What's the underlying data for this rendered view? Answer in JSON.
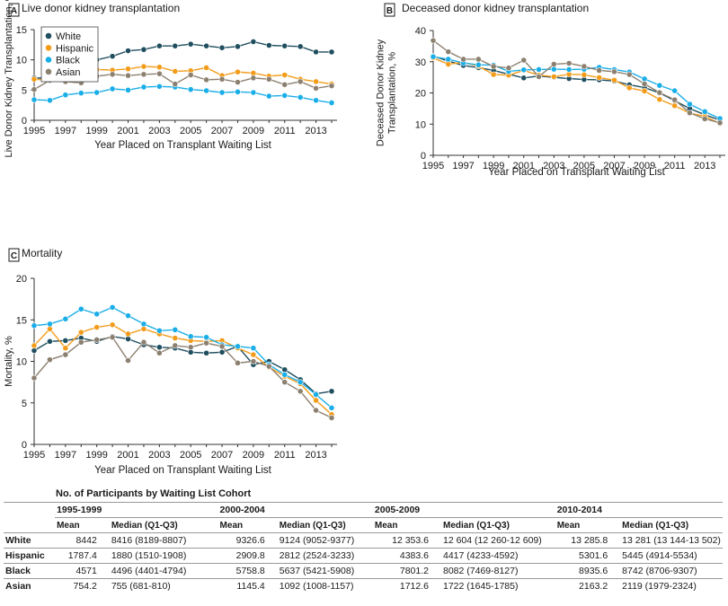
{
  "colors": {
    "White": "#1f4e5f",
    "Hispanic": "#f39c1a",
    "Black": "#1aaee8",
    "Asian": "#8c8070"
  },
  "chart_data": [
    {
      "panel": "A",
      "type": "line",
      "title": "Live donor kidney transplantation",
      "xlabel": "Year Placed on Transplant Waiting List",
      "ylabel": [
        "Live Donor Kidney Transplantation, %"
      ],
      "xlim": [
        1995,
        2014
      ],
      "ylim": [
        0,
        15
      ],
      "yticks": [
        0,
        5,
        10,
        15
      ],
      "xticks": [
        1995,
        1997,
        1999,
        2001,
        2003,
        2005,
        2007,
        2009,
        2011,
        2013
      ],
      "legend": [
        "White",
        "Hispanic",
        "Black",
        "Asian"
      ],
      "legend_position": "top-left",
      "x": [
        1995,
        1996,
        1997,
        1998,
        1999,
        2000,
        2001,
        2002,
        2003,
        2004,
        2005,
        2006,
        2007,
        2008,
        2009,
        2010,
        2011,
        2012,
        2013,
        2014
      ],
      "series": [
        {
          "name": "White",
          "values": [
            7.0,
            7.0,
            8.1,
            8.7,
            10.0,
            10.6,
            11.5,
            11.7,
            12.3,
            12.3,
            12.6,
            12.3,
            12.0,
            12.2,
            13.0,
            12.4,
            12.3,
            12.2,
            11.3,
            11.3
          ]
        },
        {
          "name": "Hispanic",
          "values": [
            6.8,
            6.6,
            7.3,
            7.5,
            8.4,
            8.3,
            8.5,
            8.9,
            8.8,
            8.1,
            8.2,
            8.7,
            7.4,
            8.0,
            7.8,
            7.3,
            7.5,
            6.8,
            6.4,
            6.0
          ]
        },
        {
          "name": "Black",
          "values": [
            3.4,
            3.3,
            4.2,
            4.5,
            4.6,
            5.2,
            5.0,
            5.5,
            5.6,
            5.5,
            5.1,
            4.9,
            4.6,
            4.7,
            4.6,
            4.0,
            4.1,
            3.8,
            3.3,
            2.9
          ]
        },
        {
          "name": "Asian",
          "values": [
            5.1,
            6.6,
            6.4,
            6.2,
            7.3,
            7.6,
            7.4,
            7.6,
            7.7,
            6.0,
            7.5,
            6.7,
            6.8,
            6.3,
            7.0,
            6.8,
            5.9,
            6.4,
            5.3,
            5.7
          ]
        }
      ]
    },
    {
      "panel": "B",
      "type": "line",
      "title": "Deceased donor kidney transplantation",
      "xlabel": "Year Placed on Transplant Waiting List",
      "ylabel": [
        "Deceased Donor Kidney",
        "Transplantation, %"
      ],
      "xlim": [
        1995,
        2014
      ],
      "ylim": [
        0,
        40
      ],
      "yticks": [
        0,
        10,
        20,
        30,
        40
      ],
      "xticks": [
        1995,
        1997,
        1999,
        2001,
        2003,
        2005,
        2007,
        2009,
        2011,
        2013
      ],
      "x": [
        1995,
        1996,
        1997,
        1998,
        1999,
        2000,
        2001,
        2002,
        2003,
        2004,
        2005,
        2006,
        2007,
        2008,
        2009,
        2010,
        2011,
        2012,
        2013,
        2014
      ],
      "series": [
        {
          "name": "White",
          "values": [
            31.8,
            30.2,
            28.8,
            28.1,
            27.2,
            26.0,
            24.8,
            25.4,
            25.0,
            24.6,
            24.3,
            24.2,
            23.8,
            22.6,
            21.7,
            20.0,
            17.5,
            15.0,
            13.0,
            11.3
          ]
        },
        {
          "name": "Hispanic",
          "values": [
            31.2,
            29.2,
            29.8,
            28.6,
            25.9,
            25.7,
            27.2,
            25.7,
            25.2,
            26.0,
            25.8,
            24.9,
            24.1,
            21.6,
            20.6,
            17.9,
            15.9,
            13.5,
            12.5,
            10.2
          ]
        },
        {
          "name": "Black",
          "values": [
            31.6,
            30.8,
            29.6,
            29.0,
            28.9,
            26.9,
            27.4,
            27.5,
            27.6,
            27.5,
            27.6,
            28.2,
            27.5,
            26.7,
            24.5,
            22.4,
            20.7,
            16.4,
            14.0,
            11.8
          ]
        },
        {
          "name": "Asian",
          "values": [
            36.8,
            33.2,
            30.8,
            30.8,
            28.5,
            28.0,
            30.5,
            25.2,
            29.2,
            29.5,
            28.5,
            27.2,
            26.8,
            25.9,
            22.9,
            20.1,
            17.8,
            13.6,
            11.7,
            10.4
          ]
        }
      ]
    },
    {
      "panel": "C",
      "type": "line",
      "title": "Mortality",
      "xlabel": "Year Placed on Transplant Waiting List",
      "ylabel": [
        "Mortality, %"
      ],
      "xlim": [
        1995,
        2014
      ],
      "ylim": [
        0,
        20
      ],
      "yticks": [
        0,
        5,
        10,
        15,
        20
      ],
      "xticks": [
        1995,
        1997,
        1999,
        2001,
        2003,
        2005,
        2007,
        2009,
        2011,
        2013
      ],
      "x": [
        1995,
        1996,
        1997,
        1998,
        1999,
        2000,
        2001,
        2002,
        2003,
        2004,
        2005,
        2006,
        2007,
        2008,
        2009,
        2010,
        2011,
        2012,
        2013,
        2014
      ],
      "series": [
        {
          "name": "White",
          "values": [
            11.3,
            12.4,
            12.5,
            12.8,
            12.4,
            13.0,
            12.7,
            12.0,
            11.7,
            11.6,
            11.1,
            11.0,
            11.1,
            11.8,
            9.6,
            10.0,
            9.0,
            7.8,
            6.1,
            6.4
          ]
        },
        {
          "name": "Hispanic",
          "values": [
            11.9,
            13.9,
            11.6,
            13.5,
            14.1,
            14.4,
            13.3,
            13.9,
            13.3,
            12.8,
            12.5,
            12.4,
            12.5,
            11.6,
            10.8,
            9.3,
            8.2,
            7.3,
            5.3,
            3.6
          ]
        },
        {
          "name": "Black",
          "values": [
            14.3,
            14.5,
            15.1,
            16.3,
            15.7,
            16.5,
            15.5,
            14.5,
            13.7,
            13.8,
            13.0,
            12.9,
            12.0,
            11.8,
            11.6,
            9.6,
            8.4,
            7.5,
            6.0,
            4.4
          ]
        },
        {
          "name": "Asian",
          "values": [
            8.0,
            10.2,
            10.8,
            12.3,
            12.6,
            12.9,
            10.1,
            12.3,
            11.0,
            11.9,
            11.7,
            12.2,
            11.8,
            9.8,
            10.0,
            9.4,
            7.5,
            6.4,
            4.1,
            3.2
          ]
        }
      ]
    }
  ],
  "table": {
    "title": "No. of Participants by Waiting List Cohort",
    "periods": [
      "1995-1999",
      "2000-2004",
      "2005-2009",
      "2010-2014"
    ],
    "col_mean": "Mean",
    "col_median": "Median (Q1-Q3)",
    "rows": [
      {
        "label": "White",
        "cells": [
          [
            "8442",
            "8416 (8189-8807)"
          ],
          [
            "9326.6",
            "9124 (9052-9377)"
          ],
          [
            "12 353.6",
            "12 604 (12 260-12 609)"
          ],
          [
            "13 285.8",
            "13 281 (13 144-13 502)"
          ]
        ]
      },
      {
        "label": "Hispanic",
        "cells": [
          [
            "1787.4",
            "1880 (1510-1908)"
          ],
          [
            "2909.8",
            "2812 (2524-3233)"
          ],
          [
            "4383.6",
            "4417 (4233-4592)"
          ],
          [
            "5301.6",
            "5445 (4914-5534)"
          ]
        ]
      },
      {
        "label": "Black",
        "cells": [
          [
            "4571",
            "4496 (4401-4794)"
          ],
          [
            "5758.8",
            "5637 (5421-5908)"
          ],
          [
            "7801.2",
            "8082 (7469-8127)"
          ],
          [
            "8935.6",
            "8742 (8706-9307)"
          ]
        ]
      },
      {
        "label": "Asian",
        "cells": [
          [
            "754.2",
            "755 (681-810)"
          ],
          [
            "1145.4",
            "1092 (1008-1157)"
          ],
          [
            "1712.6",
            "1722 (1645-1785)"
          ],
          [
            "2163.2",
            "2119 (1979-2324)"
          ]
        ]
      }
    ]
  }
}
